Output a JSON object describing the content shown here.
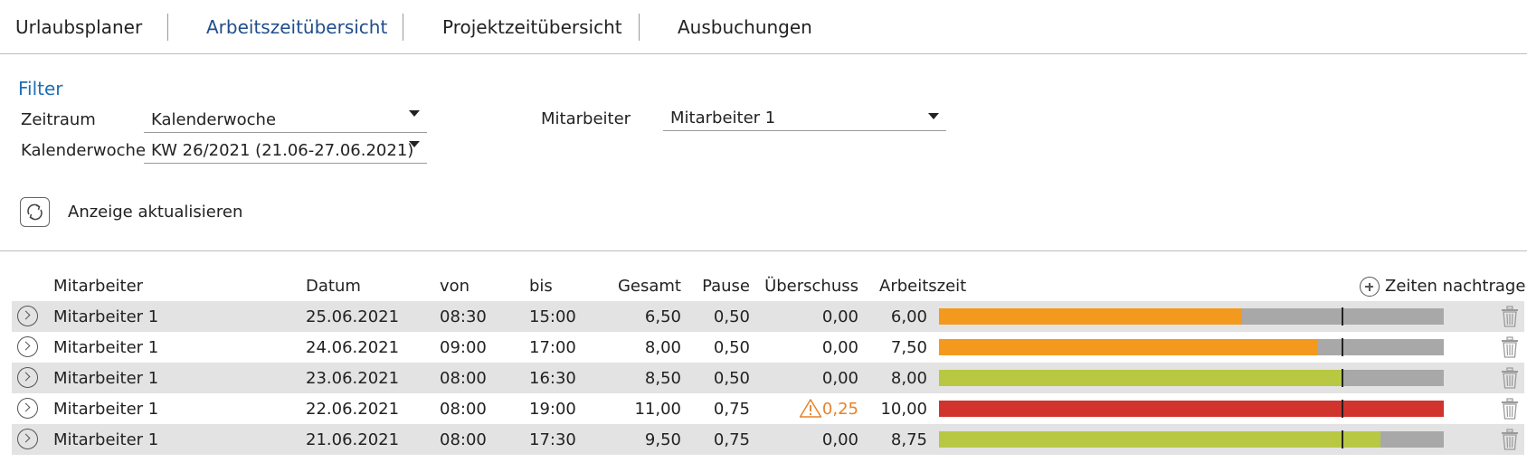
{
  "tabs": [
    {
      "label": "Urlaubsplaner",
      "active": false
    },
    {
      "label": "Arbeitszeitübersicht",
      "active": true
    },
    {
      "label": "Projektzeitübersicht",
      "active": false
    },
    {
      "label": "Ausbuchungen",
      "active": false
    }
  ],
  "filter": {
    "title": "Filter",
    "zeitraum_label": "Zeitraum",
    "zeitraum_value": "Kalenderwoche",
    "kalenderwoche_label": "Kalenderwoche",
    "kalenderwoche_value": "KW 26/2021 (21.06-27.06.2021)",
    "mitarbeiter_label": "Mitarbeiter",
    "mitarbeiter_value": "Mitarbeiter 1",
    "refresh_label": "Anzeige aktualisieren",
    "refresh_icon": "refresh-icon"
  },
  "table": {
    "headers": {
      "mitarbeiter": "Mitarbeiter",
      "datum": "Datum",
      "von": "von",
      "bis": "bis",
      "gesamt": "Gesamt",
      "pause": "Pause",
      "ueberschuss": "Überschuss",
      "arbeitszeit": "Arbeitszeit"
    },
    "add_times_label": "Zeiten nachtragen",
    "target_hours": 8,
    "max_hours": 10,
    "colors": {
      "under": "#f39a1e",
      "ok": "#b9c842",
      "over": "#d0342c",
      "rest": "#a8a8a8",
      "warning": "#e8822a"
    },
    "rows": [
      {
        "mitarbeiter": "Mitarbeiter 1",
        "datum": "25.06.2021",
        "von": "08:30",
        "bis": "15:00",
        "gesamt": "6,50",
        "pause": "0,50",
        "ueberschuss": "0,00",
        "arbeitszeit": "6,00",
        "hours": 6.0,
        "status": "under",
        "warning": false
      },
      {
        "mitarbeiter": "Mitarbeiter 1",
        "datum": "24.06.2021",
        "von": "09:00",
        "bis": "17:00",
        "gesamt": "8,00",
        "pause": "0,50",
        "ueberschuss": "0,00",
        "arbeitszeit": "7,50",
        "hours": 7.5,
        "status": "under",
        "warning": false
      },
      {
        "mitarbeiter": "Mitarbeiter 1",
        "datum": "23.06.2021",
        "von": "08:00",
        "bis": "16:30",
        "gesamt": "8,50",
        "pause": "0,50",
        "ueberschuss": "0,00",
        "arbeitszeit": "8,00",
        "hours": 8.0,
        "status": "ok",
        "warning": false
      },
      {
        "mitarbeiter": "Mitarbeiter 1",
        "datum": "22.06.2021",
        "von": "08:00",
        "bis": "19:00",
        "gesamt": "11,00",
        "pause": "0,75",
        "ueberschuss": "0,25",
        "arbeitszeit": "10,00",
        "hours": 10.0,
        "status": "over",
        "warning": true
      },
      {
        "mitarbeiter": "Mitarbeiter 1",
        "datum": "21.06.2021",
        "von": "08:00",
        "bis": "17:30",
        "gesamt": "9,50",
        "pause": "0,75",
        "ueberschuss": "0,00",
        "arbeitszeit": "8,75",
        "hours": 8.75,
        "status": "ok",
        "warning": false
      }
    ]
  }
}
